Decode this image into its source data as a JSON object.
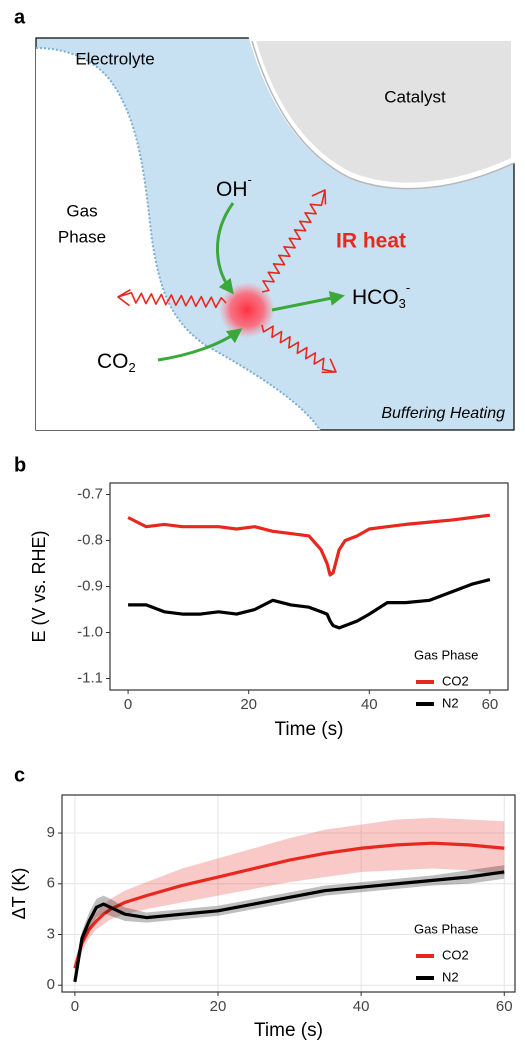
{
  "diagram": {
    "panel_label": "a",
    "electrolyte": "Electrolyte",
    "catalyst": "Catalyst",
    "gas_phase": [
      "Gas",
      "Phase"
    ],
    "oh": {
      "base": "OH",
      "sup": "-"
    },
    "ir_heat": "IR heat",
    "hco3": {
      "base": "HCO",
      "sub": "3",
      "sup": "-"
    },
    "co2": {
      "base": "CO",
      "sub": "2"
    },
    "buffering": "Buffering Heating"
  },
  "chart_data": [
    {
      "type": "line",
      "panel_label": "b",
      "y_label": "E (V vs. RHE)",
      "x_label": "Time (s)",
      "x": [
        0,
        3,
        6,
        9,
        12,
        15,
        18,
        21,
        24,
        27,
        30,
        32,
        33,
        33.5,
        34,
        35,
        36,
        38,
        40,
        43,
        46,
        50,
        54,
        57,
        60
      ],
      "series": [
        {
          "name": "CO2",
          "color": "#e8281e",
          "values": [
            -0.75,
            -0.77,
            -0.765,
            -0.77,
            -0.77,
            -0.77,
            -0.775,
            -0.77,
            -0.78,
            -0.785,
            -0.79,
            -0.82,
            -0.85,
            -0.875,
            -0.87,
            -0.82,
            -0.8,
            -0.79,
            -0.775,
            -0.77,
            -0.765,
            -0.76,
            -0.755,
            -0.75,
            -0.745
          ]
        },
        {
          "name": "N2",
          "color": "#000000",
          "values": [
            -0.94,
            -0.94,
            -0.955,
            -0.96,
            -0.96,
            -0.955,
            -0.96,
            -0.95,
            -0.93,
            -0.94,
            -0.945,
            -0.955,
            -0.96,
            -0.975,
            -0.985,
            -0.99,
            -0.985,
            -0.975,
            -0.96,
            -0.935,
            -0.935,
            -0.93,
            -0.91,
            -0.895,
            -0.885
          ]
        }
      ],
      "xlim": [
        -3,
        63
      ],
      "ylim": [
        -1.125,
        -0.675
      ],
      "xticks": [
        0,
        20,
        40,
        60
      ],
      "yticks": [
        -0.7,
        -0.8,
        -0.9,
        {
          "value": -1,
          "label": "-1.0"
        },
        -1.1
      ],
      "grid": false,
      "legend_title": "Gas Phase",
      "legend": "bottom-right"
    },
    {
      "type": "line",
      "panel_label": "c",
      "y_label": "ΔT (K)",
      "x_label": "Time (s)",
      "x": [
        0,
        1,
        2,
        3,
        4,
        5,
        7,
        10,
        15,
        20,
        25,
        30,
        35,
        40,
        45,
        50,
        55,
        60
      ],
      "series": [
        {
          "name": "CO2",
          "color": "#e8281e",
          "values": [
            1,
            2.5,
            3.3,
            3.8,
            4.2,
            4.5,
            4.9,
            5.3,
            5.9,
            6.4,
            6.9,
            7.4,
            7.8,
            8.1,
            8.3,
            8.4,
            8.3,
            8.1
          ],
          "lower": [
            0.6,
            2,
            2.8,
            3.3,
            3.6,
            3.9,
            4.2,
            4.5,
            4.9,
            5.3,
            5.7,
            6.1,
            6.4,
            6.7,
            6.8,
            6.9,
            6.8,
            6.5
          ],
          "upper": [
            1.4,
            3,
            3.8,
            4.3,
            4.8,
            5.1,
            5.6,
            6.1,
            6.9,
            7.5,
            8.1,
            8.7,
            9.2,
            9.5,
            9.8,
            9.9,
            9.8,
            9.7
          ]
        },
        {
          "name": "N2",
          "color": "#000000",
          "values": [
            0.2,
            2.8,
            3.8,
            4.6,
            4.8,
            4.6,
            4.2,
            4,
            4.2,
            4.4,
            4.8,
            5.2,
            5.6,
            5.8,
            6,
            6.2,
            6.4,
            6.7
          ],
          "lower": [
            0,
            2.4,
            3.3,
            4,
            4.3,
            4.1,
            3.8,
            3.7,
            3.9,
            4.1,
            4.5,
            4.9,
            5.3,
            5.5,
            5.7,
            5.9,
            6,
            6.3
          ],
          "upper": [
            0.4,
            3.2,
            4.3,
            5.1,
            5.3,
            5.1,
            4.6,
            4.3,
            4.5,
            4.7,
            5.1,
            5.5,
            5.9,
            6.1,
            6.3,
            6.5,
            6.8,
            7.1
          ]
        }
      ],
      "xlim": [
        -1.8,
        61.5
      ],
      "ylim": [
        -0.4,
        11.25
      ],
      "xticks": [
        0,
        20,
        40,
        60
      ],
      "yticks": [
        0,
        3,
        6,
        9
      ],
      "grid": true,
      "legend_title": "Gas Phase",
      "legend": "bottom-right"
    }
  ]
}
